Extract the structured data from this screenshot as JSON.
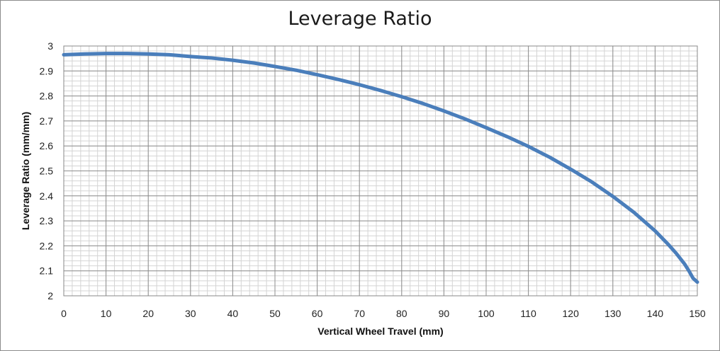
{
  "chart_data": {
    "type": "line",
    "title": "Leverage Ratio",
    "xlabel": "Vertical Wheel Travel (mm)",
    "ylabel": "Leverage Ratio (mm/mm)",
    "xlim": [
      0,
      150
    ],
    "ylim": [
      2,
      3
    ],
    "x_ticks": [
      0,
      10,
      20,
      30,
      40,
      50,
      60,
      70,
      80,
      90,
      100,
      110,
      120,
      130,
      140,
      150
    ],
    "y_ticks": [
      2,
      2.1,
      2.2,
      2.3,
      2.4,
      2.5,
      2.6,
      2.7,
      2.8,
      2.9,
      3
    ],
    "grid": true,
    "legend": "none",
    "line_color": "#4a7ebb",
    "series": [
      {
        "x": [
          0,
          5,
          10,
          15,
          20,
          25,
          30,
          35,
          40,
          45,
          50,
          55,
          60,
          65,
          70,
          75,
          80,
          85,
          90,
          95,
          100,
          105,
          110,
          115,
          120,
          125,
          130,
          135,
          140,
          143,
          145,
          147,
          148,
          149,
          150
        ],
        "values": [
          2.965,
          2.968,
          2.97,
          2.97,
          2.968,
          2.965,
          2.958,
          2.952,
          2.943,
          2.932,
          2.918,
          2.903,
          2.885,
          2.866,
          2.845,
          2.822,
          2.797,
          2.77,
          2.74,
          2.708,
          2.673,
          2.637,
          2.598,
          2.555,
          2.507,
          2.456,
          2.398,
          2.334,
          2.26,
          2.208,
          2.17,
          2.127,
          2.1,
          2.07,
          2.055
        ]
      }
    ]
  }
}
